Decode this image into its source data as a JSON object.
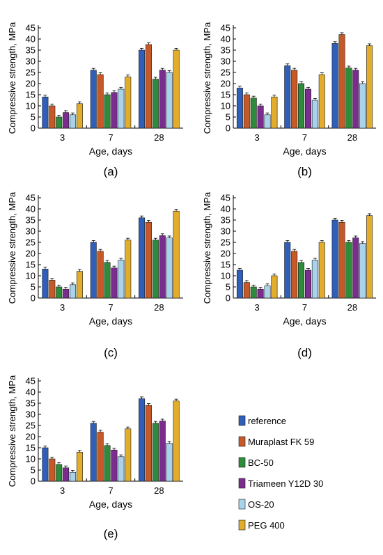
{
  "series": [
    "reference",
    "Muraplast FK 59",
    "BC-50",
    "Triameen Y12D 30",
    "OS-20",
    "PEG 400"
  ],
  "colors": [
    "#2f5fb8",
    "#c55a28",
    "#2e8b3a",
    "#7b2c8f",
    "#a8d3ea",
    "#e3ad2c"
  ],
  "ylabel": "Compressive strength, MPa",
  "xlabel": "Age, days",
  "categories": [
    "3",
    "7",
    "28"
  ],
  "yticks": [
    "0",
    "5",
    "10",
    "15",
    "20",
    "25",
    "30",
    "35",
    "40",
    "45"
  ],
  "chart_data": [
    {
      "type": "bar",
      "label": "(a)",
      "categories": [
        "3",
        "7",
        "28"
      ],
      "ylim": [
        0,
        45
      ],
      "xlabel": "Age, days",
      "ylabel": "Compressive strength, MPa",
      "series": [
        {
          "name": "reference",
          "values": [
            14,
            26,
            35
          ]
        },
        {
          "name": "Muraplast FK 59",
          "values": [
            10,
            24,
            37.5
          ]
        },
        {
          "name": "BC-50",
          "values": [
            5,
            15,
            22
          ]
        },
        {
          "name": "Triameen Y12D 30",
          "values": [
            7,
            16,
            26
          ]
        },
        {
          "name": "OS-20",
          "values": [
            6,
            17.5,
            25
          ]
        },
        {
          "name": "PEG 400",
          "values": [
            11,
            23,
            35
          ]
        }
      ]
    },
    {
      "type": "bar",
      "label": "(b)",
      "categories": [
        "3",
        "7",
        "28"
      ],
      "ylim": [
        0,
        45
      ],
      "xlabel": "Age, days",
      "ylabel": "Compressive strength, MPa",
      "series": [
        {
          "name": "reference",
          "values": [
            18,
            28,
            38
          ]
        },
        {
          "name": "Muraplast FK 59",
          "values": [
            15,
            26,
            42
          ]
        },
        {
          "name": "BC-50",
          "values": [
            13.5,
            20,
            27
          ]
        },
        {
          "name": "Triameen Y12D 30",
          "values": [
            10,
            17.5,
            26
          ]
        },
        {
          "name": "OS-20",
          "values": [
            6,
            12.5,
            20
          ]
        },
        {
          "name": "PEG 400",
          "values": [
            14,
            24,
            37
          ]
        }
      ]
    },
    {
      "type": "bar",
      "label": "(c)",
      "categories": [
        "3",
        "7",
        "28"
      ],
      "ylim": [
        0,
        45
      ],
      "xlabel": "Age, days",
      "ylabel": "Compressive strength, MPa",
      "series": [
        {
          "name": "reference",
          "values": [
            13,
            25,
            36
          ]
        },
        {
          "name": "Muraplast FK 59",
          "values": [
            8,
            21,
            34
          ]
        },
        {
          "name": "BC-50",
          "values": [
            5,
            16,
            26
          ]
        },
        {
          "name": "Triameen Y12D 30",
          "values": [
            4,
            13.5,
            28
          ]
        },
        {
          "name": "OS-20",
          "values": [
            6,
            17,
            27
          ]
        },
        {
          "name": "PEG 400",
          "values": [
            12,
            26,
            39
          ]
        }
      ]
    },
    {
      "type": "bar",
      "label": "(d)",
      "categories": [
        "3",
        "7",
        "28"
      ],
      "ylim": [
        0,
        45
      ],
      "xlabel": "Age, days",
      "ylabel": "Compressive strength, MPa",
      "series": [
        {
          "name": "reference",
          "values": [
            12.5,
            25,
            35
          ]
        },
        {
          "name": "Muraplast FK 59",
          "values": [
            7,
            21,
            34
          ]
        },
        {
          "name": "BC-50",
          "values": [
            5,
            16,
            25
          ]
        },
        {
          "name": "Triameen Y12D 30",
          "values": [
            4,
            12.5,
            27
          ]
        },
        {
          "name": "OS-20",
          "values": [
            5.5,
            17,
            24.5
          ]
        },
        {
          "name": "PEG 400",
          "values": [
            10,
            25,
            37
          ]
        }
      ]
    },
    {
      "type": "bar",
      "label": "(e)",
      "categories": [
        "3",
        "7",
        "28"
      ],
      "ylim": [
        0,
        45
      ],
      "xlabel": "Age, days",
      "ylabel": "Compressive strength, MPa",
      "series": [
        {
          "name": "reference",
          "values": [
            15,
            26,
            37
          ]
        },
        {
          "name": "Muraplast FK 59",
          "values": [
            10,
            22,
            34
          ]
        },
        {
          "name": "BC-50",
          "values": [
            7.5,
            16,
            26
          ]
        },
        {
          "name": "Triameen Y12D 30",
          "values": [
            6,
            14,
            27
          ]
        },
        {
          "name": "OS-20",
          "values": [
            4,
            11,
            17
          ]
        },
        {
          "name": "PEG 400",
          "values": [
            13,
            23.5,
            36
          ]
        }
      ]
    }
  ]
}
